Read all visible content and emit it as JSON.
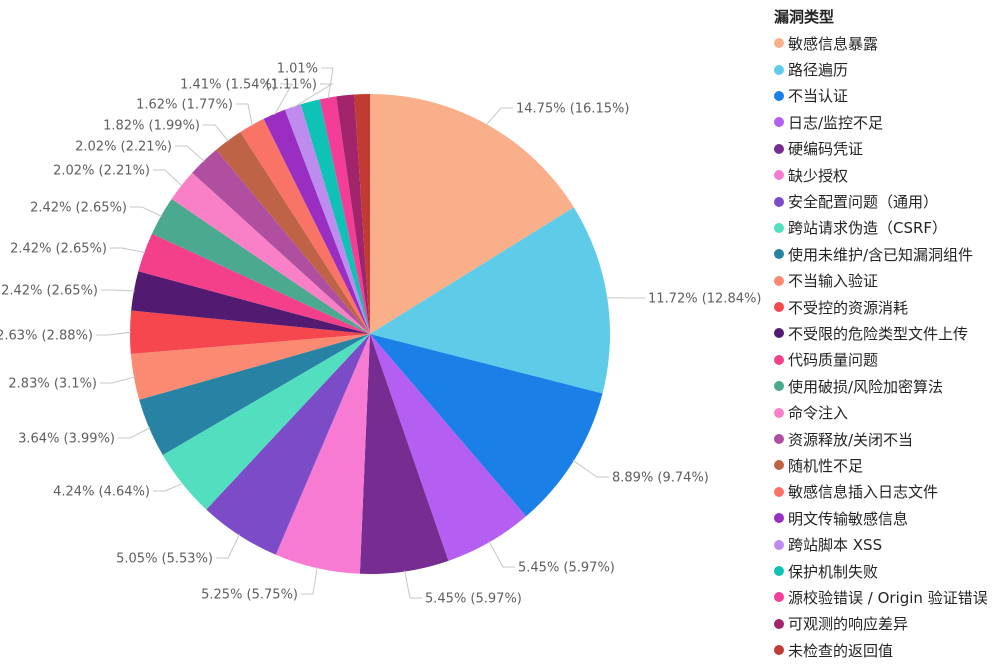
{
  "legend": {
    "title": "漏洞类型",
    "position": "right"
  },
  "colors": {
    "background": "#FFFFFF",
    "slice_label_text": "#605E5C",
    "leader_line": "#C8C6C4",
    "legend_text": "#252423",
    "legend_title_text": "#252423"
  },
  "chart_data": {
    "type": "pie",
    "title": "漏洞类型",
    "legend_position": "right",
    "label_format": "value% (share%)",
    "slices": [
      {
        "name": "敏感信息暴露",
        "value_pct": 14.75,
        "share_pct": 16.15,
        "color": "#F9B08A",
        "label": "14.75% (16.15%)"
      },
      {
        "name": "路径遍历",
        "value_pct": 11.72,
        "share_pct": 12.84,
        "color": "#5ECBE8",
        "label": "11.72% (12.84%)"
      },
      {
        "name": "不当认证",
        "value_pct": 8.89,
        "share_pct": 9.74,
        "color": "#1B7FE8",
        "label": "8.89% (9.74%)"
      },
      {
        "name": "日志/监控不足",
        "value_pct": 5.45,
        "share_pct": 5.97,
        "color": "#B55FF2",
        "label": "5.45% (5.97%)"
      },
      {
        "name": "硬编码凭证",
        "value_pct": 5.45,
        "share_pct": 5.97,
        "color": "#772C91",
        "label": "5.45% (5.97%)"
      },
      {
        "name": "缺少授权",
        "value_pct": 5.25,
        "share_pct": 5.75,
        "color": "#F87BD3",
        "label": "5.25% (5.75%)"
      },
      {
        "name": "安全配置问题（通用）",
        "value_pct": 5.05,
        "share_pct": 5.53,
        "color": "#7C4BC8",
        "label": "5.05% (5.53%)"
      },
      {
        "name": "跨站请求伪造（CSRF）",
        "value_pct": 4.24,
        "share_pct": 4.64,
        "color": "#52DFC0",
        "label": "4.24% (4.64%)"
      },
      {
        "name": "使用未维护/含已知漏洞组件",
        "value_pct": 3.64,
        "share_pct": 3.99,
        "color": "#2782A3",
        "label": "3.64% (3.99%)"
      },
      {
        "name": "不当输入验证",
        "value_pct": 2.83,
        "share_pct": 3.1,
        "color": "#FA8A72",
        "label": "2.83% (3.1%)"
      },
      {
        "name": "不受控的资源消耗",
        "value_pct": 2.63,
        "share_pct": 2.88,
        "color": "#F6464E",
        "label": "2.63% (2.88%)"
      },
      {
        "name": "不受限的危险类型文件上传",
        "value_pct": 2.42,
        "share_pct": 2.65,
        "color": "#521A70",
        "label": "2.42% (2.65%)"
      },
      {
        "name": "代码质量问题",
        "value_pct": 2.42,
        "share_pct": 2.65,
        "color": "#F4408A",
        "label": "2.42% (2.65%)"
      },
      {
        "name": "使用破损/风险加密算法",
        "value_pct": 2.42,
        "share_pct": 2.65,
        "color": "#4AA98F",
        "label": "2.42% (2.65%)"
      },
      {
        "name": "命令注入",
        "value_pct": 2.02,
        "share_pct": 2.21,
        "color": "#F980C6",
        "label": "2.02% (2.21%)"
      },
      {
        "name": "资源释放/关闭不当",
        "value_pct": 2.02,
        "share_pct": 2.21,
        "color": "#B04F9F",
        "label": "2.02% (2.21%)"
      },
      {
        "name": "随机性不足",
        "value_pct": 1.82,
        "share_pct": 1.99,
        "color": "#BE6345",
        "label": "1.82% (1.99%)"
      },
      {
        "name": "敏感信息插入日志文件",
        "value_pct": 1.62,
        "share_pct": 1.77,
        "color": "#F97367",
        "label": "1.62% (1.77%)"
      },
      {
        "name": "明文传输敏感信息",
        "value_pct": 1.41,
        "share_pct": 1.54,
        "color": "#9A2EC2",
        "label": "1.41% (1.54%)"
      },
      {
        "name": "跨站脚本 XSS",
        "value_pct": 1.01,
        "share_pct": 1.11,
        "color": "#BE8CEE",
        "label": "(1.11%)"
      },
      {
        "name": "保护机制失败",
        "value_pct": 1.19,
        "share_pct": 1.3,
        "color": "#0EC2B5",
        "label": null,
        "estimated": true
      },
      {
        "name": "源校验错误 / Origin 验证错误",
        "value_pct": 1.01,
        "share_pct": 1.11,
        "color": "#F33D96",
        "label": "1.01%"
      },
      {
        "name": "可观测的响应差异",
        "value_pct": 1.1,
        "share_pct": 1.2,
        "color": "#A2256B",
        "label": null,
        "estimated": true
      },
      {
        "name": "未检查的返回值",
        "value_pct": 0.96,
        "share_pct": 1.05,
        "color": "#C23B32",
        "label": null,
        "estimated": true
      }
    ]
  }
}
